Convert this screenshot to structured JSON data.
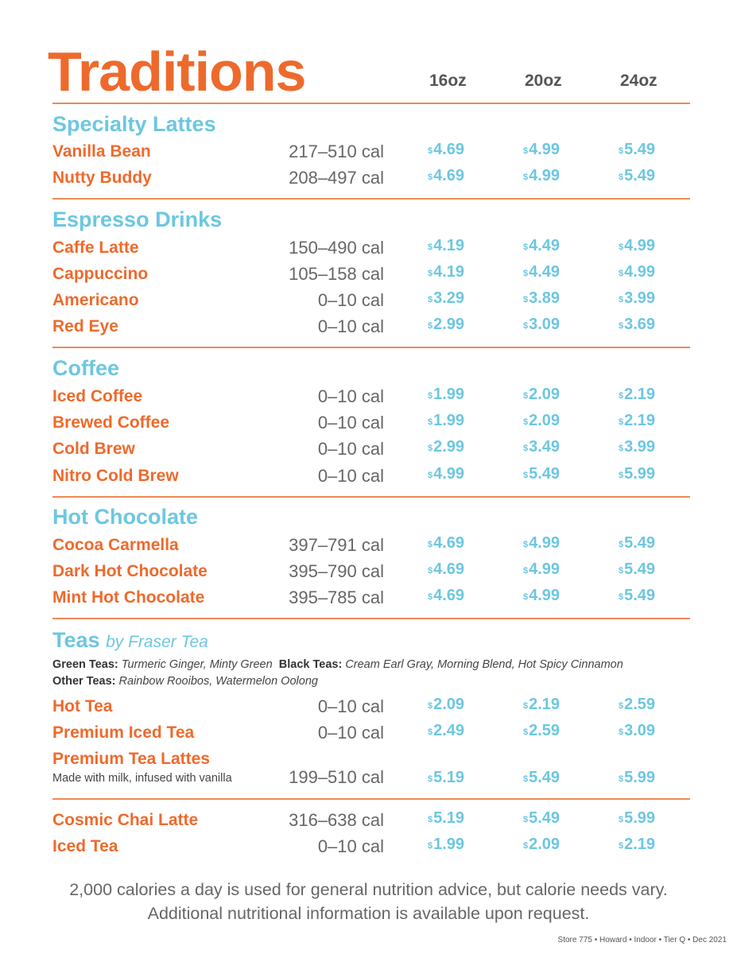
{
  "title": "Traditions",
  "sizes": [
    "16oz",
    "20oz",
    "24oz"
  ],
  "currency": "$",
  "sections": [
    {
      "name": "Specialty Lattes",
      "items": [
        {
          "name": "Vanilla Bean",
          "cal": "217–510 cal",
          "prices": [
            "4.69",
            "4.99",
            "5.49"
          ]
        },
        {
          "name": "Nutty Buddy",
          "cal": "208–497 cal",
          "prices": [
            "4.69",
            "4.99",
            "5.49"
          ]
        }
      ]
    },
    {
      "name": "Espresso Drinks",
      "items": [
        {
          "name": "Caffe Latte",
          "cal": "150–490 cal",
          "prices": [
            "4.19",
            "4.49",
            "4.99"
          ]
        },
        {
          "name": "Cappuccino",
          "cal": "105–158 cal",
          "prices": [
            "4.19",
            "4.49",
            "4.99"
          ]
        },
        {
          "name": "Americano",
          "cal": "0–10 cal",
          "prices": [
            "3.29",
            "3.89",
            "3.99"
          ]
        },
        {
          "name": "Red Eye",
          "cal": "0–10 cal",
          "prices": [
            "2.99",
            "3.09",
            "3.69"
          ]
        }
      ]
    },
    {
      "name": "Coffee",
      "items": [
        {
          "name": "Iced Coffee",
          "cal": "0–10 cal",
          "prices": [
            "1.99",
            "2.09",
            "2.19"
          ]
        },
        {
          "name": "Brewed Coffee",
          "cal": "0–10 cal",
          "prices": [
            "1.99",
            "2.09",
            "2.19"
          ]
        },
        {
          "name": "Cold Brew",
          "cal": "0–10 cal",
          "prices": [
            "2.99",
            "3.49",
            "3.99"
          ]
        },
        {
          "name": "Nitro Cold Brew",
          "cal": "0–10 cal",
          "prices": [
            "4.99",
            "5.49",
            "5.99"
          ]
        }
      ]
    },
    {
      "name": "Hot Chocolate",
      "items": [
        {
          "name": "Cocoa Carmella",
          "cal": "397–791 cal",
          "prices": [
            "4.69",
            "4.99",
            "5.49"
          ]
        },
        {
          "name": "Dark Hot Chocolate",
          "cal": "395–790 cal",
          "prices": [
            "4.69",
            "4.99",
            "5.49"
          ]
        },
        {
          "name": "Mint Hot Chocolate",
          "cal": "395–785 cal",
          "prices": [
            "4.69",
            "4.99",
            "5.49"
          ]
        }
      ]
    }
  ],
  "teas": {
    "name": "Teas",
    "by": "by Fraser Tea",
    "green_label": "Green Teas:",
    "green_list": "Turmeric Ginger, Minty Green",
    "black_label": "Black Teas:",
    "black_list": "Cream Earl Gray, Morning Blend, Hot Spicy Cinnamon",
    "other_label": "Other Teas:",
    "other_list": "Rainbow Rooibos, Watermelon Oolong",
    "items": [
      {
        "name": "Hot Tea",
        "cal": "0–10 cal",
        "prices": [
          "2.09",
          "2.19",
          "2.59"
        ]
      },
      {
        "name": "Premium Iced Tea",
        "cal": "0–10 cal",
        "prices": [
          "2.49",
          "2.59",
          "3.09"
        ]
      },
      {
        "name": "Premium Tea Lattes",
        "desc": "Made with milk, infused with vanilla",
        "cal": "199–510 cal",
        "prices": [
          "5.19",
          "5.49",
          "5.99"
        ]
      }
    ]
  },
  "extras": [
    {
      "name": "Cosmic Chai Latte",
      "cal": "316–638 cal",
      "prices": [
        "5.19",
        "5.49",
        "5.99"
      ]
    },
    {
      "name": "Iced Tea",
      "cal": "0–10 cal",
      "prices": [
        "1.99",
        "2.09",
        "2.19"
      ]
    }
  ],
  "footnote": {
    "line1": "2,000 calories a day is used for general nutrition advice, but calorie needs vary.",
    "line2": "Additional nutritional information is available upon request."
  },
  "store_info": "Store 775 • Howard • Indoor • Tier Q • Dec 2021"
}
